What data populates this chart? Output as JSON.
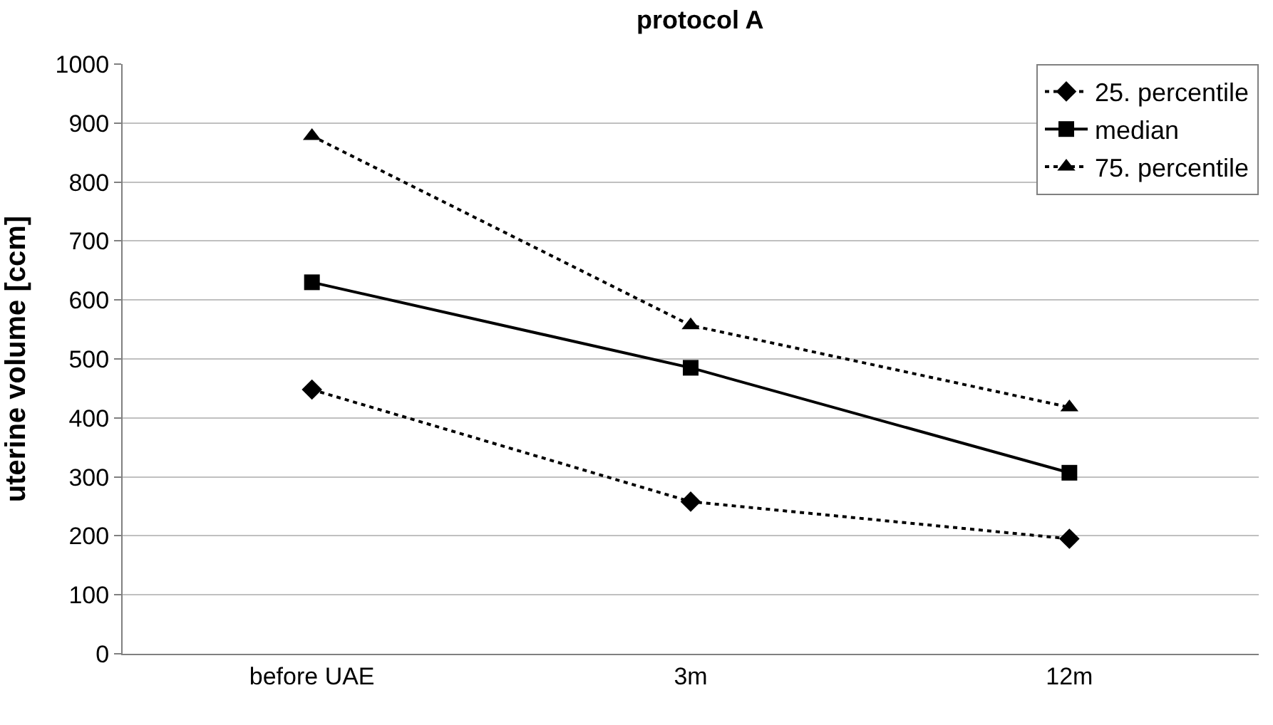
{
  "chart_data": {
    "type": "line",
    "title": "protocol A",
    "ylabel": "uterine volume [ccm]",
    "categories": [
      "before UAE",
      "3m",
      "12m"
    ],
    "series": [
      {
        "name": "25. percentile",
        "color": "#000000",
        "values": [
          448,
          258,
          195
        ],
        "marker": "diamond",
        "line_style": "dotted"
      },
      {
        "name": "median",
        "color": "#000000",
        "values": [
          630,
          485,
          307
        ],
        "marker": "square",
        "line_style": "solid"
      },
      {
        "name": "75. percentile",
        "color": "#000000",
        "values": [
          878,
          557,
          418
        ],
        "marker": "triangle",
        "line_style": "dotted"
      }
    ],
    "ylim": [
      0,
      1000
    ],
    "yticks": [
      0,
      100,
      200,
      300,
      400,
      500,
      600,
      700,
      800,
      900,
      1000
    ],
    "grid": "y",
    "legend": "top right"
  }
}
